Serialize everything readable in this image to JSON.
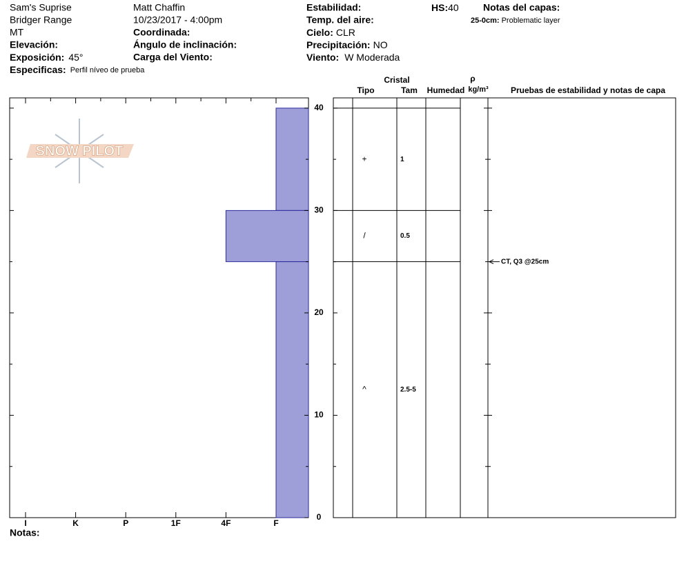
{
  "header": {
    "site": "Sam's Suprise",
    "range": "Bridger Range",
    "state": "MT",
    "elevation_label": "Elevación:",
    "aspect_label": "Exposición:",
    "aspect": "45°",
    "specifics_label": "Especificas:",
    "specifics": "Perfil níveo de prueba",
    "observer": "Matt Chaffin",
    "datetime": "10/23/2017 - 4:00pm",
    "coords_label": "Coordinada:",
    "slope_label": "Ángulo de inclinación:",
    "wind_loading_label": "Carga del Viento:",
    "stability_label": "Estabilidad:",
    "air_temp_label": "Temp. del aire:",
    "sky_label": "Cielo:",
    "sky": "CLR",
    "precip_label": "Precipitación:",
    "precip": "NO",
    "wind_label": "Viento:",
    "wind": "W Moderada",
    "hs_label": "HS:",
    "hs": 40,
    "layer_notes_label": "Notas del capas:",
    "layer_notes": [
      {
        "range": "25-0cm:",
        "note": "Problematic layer"
      }
    ]
  },
  "logo": "SNOW PILOT",
  "profile": {
    "hardness_scale": [
      "I",
      "K",
      "P",
      "1F",
      "4F",
      "F"
    ],
    "ylim": [
      0,
      41
    ],
    "yticks": [
      0,
      10,
      20,
      30,
      40
    ],
    "minor_ticks": [
      5,
      15,
      25,
      35
    ],
    "bar_color": "#9e9ed8",
    "layers": [
      {
        "top": 40,
        "bottom": 30,
        "hardness": "F",
        "crystal": "+",
        "size": "1"
      },
      {
        "top": 30,
        "bottom": 25,
        "hardness": "4F",
        "crystal": "/",
        "size": "0.5"
      },
      {
        "top": 25,
        "bottom": 0,
        "hardness": "F",
        "crystal": "^",
        "size": "2.5-5"
      }
    ]
  },
  "table": {
    "header_crystal": "Cristal",
    "col_type": "Tipo",
    "col_size": "Tam",
    "col_moisture": "Humedad",
    "col_density_symbol": "ρ",
    "col_density_unit": "kg/m³",
    "col_tests": "Pruebas de estabilidad y notas de capa"
  },
  "tests": [
    {
      "depth": 25,
      "label": "CT, Q3 @25cm"
    }
  ],
  "notes_label": "Notas:"
}
